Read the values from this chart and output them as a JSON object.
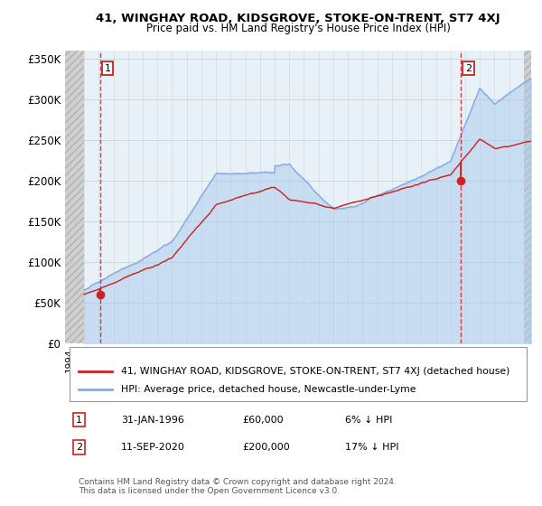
{
  "title": "41, WINGHAY ROAD, KIDSGROVE, STOKE-ON-TRENT, ST7 4XJ",
  "subtitle": "Price paid vs. HM Land Registry's House Price Index (HPI)",
  "ylim": [
    0,
    360000
  ],
  "yticks": [
    0,
    50000,
    100000,
    150000,
    200000,
    250000,
    300000,
    350000
  ],
  "ytick_labels": [
    "£0",
    "£50K",
    "£100K",
    "£150K",
    "£200K",
    "£250K",
    "£300K",
    "£350K"
  ],
  "xlim_start": 1993.7,
  "xlim_end": 2025.5,
  "hpi_color": "#88aadd",
  "price_color": "#cc2222",
  "hpi_fill_color": "#aaccee",
  "hpi_fill_alpha": 0.5,
  "sale1_date": 1996.08,
  "sale1_price": 60000,
  "sale2_date": 2020.71,
  "sale2_price": 200000,
  "hatch_start": 1993.7,
  "hatch_end": 1995.0,
  "hatch_right_start": 2025.0,
  "data_start": 1995.0,
  "legend_line1": "41, WINGHAY ROAD, KIDSGROVE, STOKE-ON-TRENT, ST7 4XJ (detached house)",
  "legend_line2": "HPI: Average price, detached house, Newcastle-under-Lyme",
  "note1_label": "1",
  "note1_date": "31-JAN-1996",
  "note1_price": "£60,000",
  "note1_hpi": "6% ↓ HPI",
  "note2_label": "2",
  "note2_date": "11-SEP-2020",
  "note2_price": "£200,000",
  "note2_hpi": "17% ↓ HPI",
  "footer": "Contains HM Land Registry data © Crown copyright and database right 2024.\nThis data is licensed under the Open Government Licence v3.0.",
  "bg_main_color": "#e8f0f8",
  "bg_hatch_color": "#d8d8d8",
  "grid_color": "#c8c8c8",
  "grid_alpha": 0.8
}
